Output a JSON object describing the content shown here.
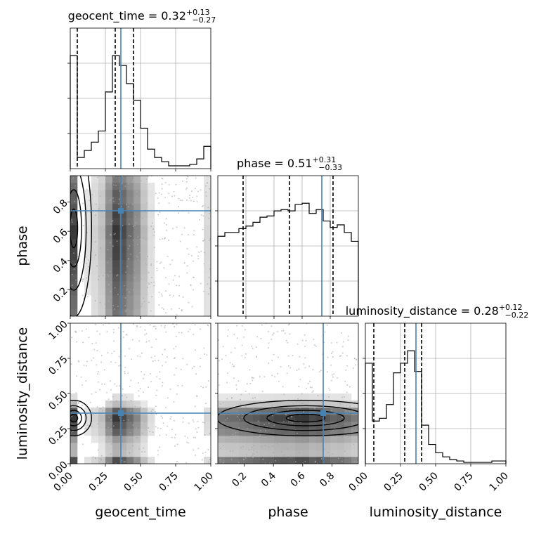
{
  "chart_data": {
    "type": "corner",
    "accent_color": "#4682b4",
    "parameters": [
      "geocent_time",
      "phase",
      "luminosity_distance"
    ],
    "truths": {
      "geocent_time": 0.36,
      "phase": 0.74,
      "luminosity_distance": 0.36
    },
    "marginals": [
      {
        "param": "geocent_time",
        "title": "geocent_time = 0.32",
        "sup": "+0.13",
        "sub": "−0.27",
        "xlim": [
          0,
          1
        ],
        "quantiles": [
          0.05,
          0.32,
          0.45
        ],
        "bins": 20,
        "heights": [
          0.81,
          0.08,
          0.13,
          0.19,
          0.27,
          0.55,
          0.81,
          0.74,
          0.61,
          0.49,
          0.29,
          0.14,
          0.08,
          0.05,
          0.02,
          0.02,
          0.02,
          0.03,
          0.07,
          0.16
        ],
        "xticks": [
          0,
          0.25,
          0.5,
          0.75,
          1.0
        ],
        "show_xticklabels": false
      },
      {
        "param": "phase",
        "title": "phase = 0.51",
        "sup": "+0.31",
        "sub": "−0.33",
        "xlim": [
          0,
          1
        ],
        "quantiles": [
          0.18,
          0.51,
          0.82
        ],
        "bins": 20,
        "heights": [
          0.63,
          0.66,
          0.66,
          0.69,
          0.71,
          0.74,
          0.78,
          0.79,
          0.83,
          0.84,
          0.83,
          0.88,
          0.89,
          0.81,
          0.84,
          0.75,
          0.7,
          0.72,
          0.66,
          0.59
        ],
        "xticks": [
          0.2,
          0.4,
          0.6,
          0.8
        ],
        "show_xticklabels": false
      },
      {
        "param": "luminosity_distance",
        "title": "luminosity_distance = 0.28",
        "sup": "+0.12",
        "sub": "−0.22",
        "xlim": [
          0,
          1
        ],
        "quantiles": [
          0.06,
          0.28,
          0.4
        ],
        "bins": 20,
        "heights": [
          0.73,
          0.31,
          0.33,
          0.43,
          0.66,
          0.73,
          0.82,
          0.67,
          0.28,
          0.14,
          0.08,
          0.05,
          0.03,
          0.02,
          0.01,
          0.01,
          0.01,
          0.01,
          0.02,
          0.02
        ],
        "xticks": [
          0,
          0.25,
          0.5,
          0.75,
          1.0
        ],
        "xticklabels": [
          "0.00",
          "0.25",
          "0.50",
          "0.75",
          "1.00"
        ],
        "show_xticklabels": true
      }
    ],
    "joints": [
      {
        "x": "geocent_time",
        "y": "phase",
        "xlim": [
          0,
          1
        ],
        "ylim": [
          0.02,
          0.98
        ],
        "yticks": [
          0.2,
          0.4,
          0.6,
          0.8
        ],
        "yticklabels": [
          "0.2",
          "0.4",
          "0.6",
          "0.8"
        ]
      },
      {
        "x": "geocent_time",
        "y": "luminosity_distance",
        "xlim": [
          0,
          1
        ],
        "ylim": [
          0,
          1
        ],
        "xticks": [
          0,
          0.25,
          0.5,
          0.75,
          1.0
        ],
        "xticklabels": [
          "0.00",
          "0.25",
          "0.50",
          "0.75",
          "1.00"
        ],
        "yticks": [
          0,
          0.25,
          0.5,
          0.75,
          1.0
        ],
        "yticklabels": [
          "0.00",
          "0.25",
          "0.50",
          "0.75",
          "1.00"
        ]
      },
      {
        "x": "phase",
        "y": "luminosity_distance",
        "xlim": [
          0.02,
          0.98
        ],
        "ylim": [
          0,
          1
        ],
        "xticks": [
          0.2,
          0.4,
          0.6,
          0.8
        ],
        "xticklabels": [
          "0.2",
          "0.4",
          "0.6",
          "0.8"
        ]
      }
    ],
    "xlabels": [
      "geocent_time",
      "phase",
      "luminosity_distance"
    ],
    "ylabels": [
      "phase",
      "luminosity_distance"
    ]
  }
}
